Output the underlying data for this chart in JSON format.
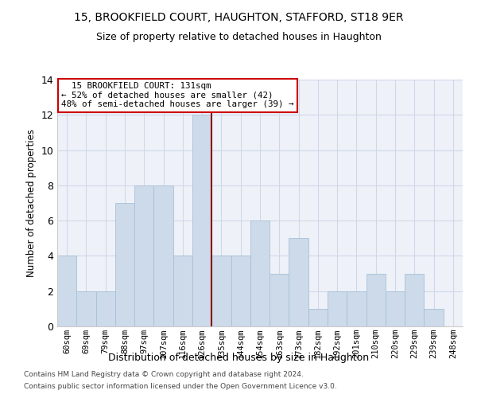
{
  "title1": "15, BROOKFIELD COURT, HAUGHTON, STAFFORD, ST18 9ER",
  "title2": "Size of property relative to detached houses in Haughton",
  "xlabel": "Distribution of detached houses by size in Haughton",
  "ylabel": "Number of detached properties",
  "bar_labels": [
    "60sqm",
    "69sqm",
    "79sqm",
    "88sqm",
    "97sqm",
    "107sqm",
    "116sqm",
    "126sqm",
    "135sqm",
    "144sqm",
    "154sqm",
    "163sqm",
    "173sqm",
    "182sqm",
    "192sqm",
    "201sqm",
    "210sqm",
    "220sqm",
    "229sqm",
    "239sqm",
    "248sqm"
  ],
  "bar_values": [
    4,
    2,
    2,
    7,
    8,
    8,
    4,
    12,
    4,
    4,
    6,
    3,
    5,
    1,
    2,
    2,
    3,
    2,
    3,
    1,
    0
  ],
  "bar_color": "#ccdaea",
  "bar_edge_color": "#a8c0d8",
  "grid_color": "#d0d8e8",
  "background_color": "#eef2f8",
  "annotation_line1": "  15 BROOKFIELD COURT: 131sqm",
  "annotation_line2": "← 52% of detached houses are smaller (42)",
  "annotation_line3": "48% of semi-detached houses are larger (39) →",
  "annotation_box_color": "#cc0000",
  "vline_color": "#880000",
  "vline_x": 7.5,
  "ylim": [
    0,
    14
  ],
  "yticks": [
    0,
    2,
    4,
    6,
    8,
    10,
    12,
    14
  ],
  "footer1": "Contains HM Land Registry data © Crown copyright and database right 2024.",
  "footer2": "Contains public sector information licensed under the Open Government Licence v3.0."
}
